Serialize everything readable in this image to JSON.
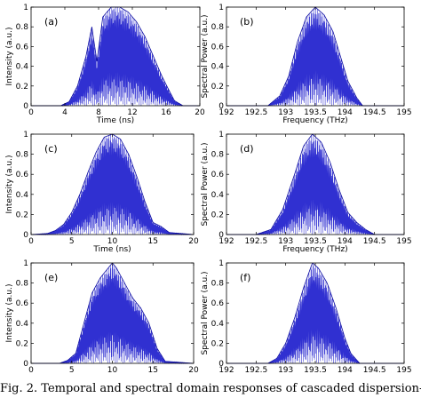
{
  "caption": "Fig. 2. Temporal and spectral domain responses of cascaded dispersion-",
  "chart_data": [
    {
      "type": "line",
      "panel": "(a)",
      "xlabel": "Time (ns)",
      "ylabel": "Intensity (a.u.)",
      "xlim": [
        0,
        20
      ],
      "ylim": [
        0,
        1
      ],
      "xticks": [
        "0",
        "4",
        "8",
        "12",
        "16",
        "20"
      ],
      "yticks": [
        "0",
        "0.2",
        "0.4",
        "0.6",
        "0.8",
        "1"
      ],
      "envelope": {
        "x": [
          0,
          3.5,
          4.5,
          5.5,
          6.5,
          7.2,
          7.8,
          8.5,
          9.5,
          10.5,
          11.5,
          12.5,
          13.5,
          14.5,
          15.5,
          16.5,
          17,
          18,
          20
        ],
        "y": [
          0,
          0,
          0.04,
          0.2,
          0.5,
          0.8,
          0.45,
          0.9,
          1.0,
          1.0,
          0.95,
          0.85,
          0.7,
          0.5,
          0.3,
          0.13,
          0.05,
          0,
          0
        ]
      },
      "line_color": "#1a1acc"
    },
    {
      "type": "line",
      "panel": "(b)",
      "xlabel": "Frequency (THz)",
      "ylabel": "Spectral Power (a.u.)",
      "xlim": [
        192,
        195
      ],
      "ylim": [
        0,
        1
      ],
      "xticks": [
        "192",
        "192.5",
        "193",
        "193.5",
        "194",
        "194.5",
        "195"
      ],
      "yticks": [
        "0",
        "0.2",
        "0.4",
        "0.6",
        "0.8",
        "1"
      ],
      "envelope": {
        "x": [
          192,
          192.7,
          192.9,
          193.05,
          193.2,
          193.35,
          193.5,
          193.65,
          193.8,
          193.95,
          194.05,
          194.2,
          194.3,
          195
        ],
        "y": [
          0,
          0,
          0.1,
          0.3,
          0.65,
          0.9,
          1.0,
          0.92,
          0.75,
          0.45,
          0.25,
          0.08,
          0,
          0
        ]
      },
      "line_color": "#1a1acc"
    },
    {
      "type": "line",
      "panel": "(c)",
      "xlabel": "Time (ns)",
      "ylabel": "Intensity (a.u.)",
      "xlim": [
        0,
        20
      ],
      "ylim": [
        0,
        1
      ],
      "xticks": [
        "0",
        "5",
        "10",
        "15",
        "20"
      ],
      "yticks": [
        "0",
        "0.2",
        "0.4",
        "0.6",
        "0.8",
        "1"
      ],
      "envelope": {
        "x": [
          0,
          2,
          3,
          4,
          5,
          6,
          7,
          8,
          9,
          10,
          11,
          12,
          13,
          14,
          15,
          16,
          17,
          20
        ],
        "y": [
          0,
          0.01,
          0.04,
          0.1,
          0.22,
          0.4,
          0.62,
          0.82,
          0.97,
          1.0,
          0.95,
          0.8,
          0.58,
          0.33,
          0.12,
          0.08,
          0.02,
          0
        ]
      },
      "line_color": "#1a1acc"
    },
    {
      "type": "line",
      "panel": "(d)",
      "xlabel": "Frequency (THz)",
      "ylabel": "Spectral Power (a.u.)",
      "xlim": [
        192,
        195
      ],
      "ylim": [
        0,
        1
      ],
      "xticks": [
        "192",
        "192.5",
        "193",
        "193.5",
        "194",
        "194.5",
        "195"
      ],
      "yticks": [
        "0",
        "0.2",
        "0.4",
        "0.6",
        "0.8",
        "1"
      ],
      "envelope": {
        "x": [
          192,
          192.5,
          192.75,
          192.95,
          193.15,
          193.3,
          193.45,
          193.6,
          193.75,
          193.9,
          194.05,
          194.2,
          194.35,
          194.5,
          195
        ],
        "y": [
          0,
          0,
          0.05,
          0.25,
          0.6,
          0.88,
          1.0,
          0.92,
          0.72,
          0.45,
          0.22,
          0.12,
          0.05,
          0,
          0
        ]
      },
      "line_color": "#1a1acc"
    },
    {
      "type": "line",
      "panel": "(e)",
      "xlabel": "",
      "ylabel": "Intensity (a.u.)",
      "xlim": [
        0,
        20
      ],
      "ylim": [
        0,
        1
      ],
      "xticks": [
        "0",
        "5",
        "10",
        "15",
        "20"
      ],
      "yticks": [
        "0",
        "0.2",
        "0.4",
        "0.6",
        "0.8",
        "1"
      ],
      "envelope": {
        "x": [
          0,
          3.5,
          4.5,
          5.5,
          6.5,
          7.5,
          8.5,
          9.5,
          10,
          10.5,
          11.5,
          12.5,
          13.5,
          14.5,
          15.5,
          16.5,
          20
        ],
        "y": [
          0,
          0,
          0.03,
          0.1,
          0.4,
          0.7,
          0.85,
          0.95,
          1.0,
          0.95,
          0.8,
          0.65,
          0.55,
          0.4,
          0.15,
          0.02,
          0
        ]
      },
      "line_color": "#1a1acc"
    },
    {
      "type": "line",
      "panel": "(f)",
      "xlabel": "",
      "ylabel": "Spectral Power (a.u.)",
      "xlim": [
        192,
        195
      ],
      "ylim": [
        0,
        1
      ],
      "xticks": [
        "192",
        "192.5",
        "193",
        "193.5",
        "194",
        "194.5",
        "195"
      ],
      "yticks": [
        "0",
        "0.2",
        "0.4",
        "0.6",
        "0.8",
        "1"
      ],
      "envelope": {
        "x": [
          192,
          192.7,
          192.85,
          193.0,
          193.15,
          193.3,
          193.45,
          193.55,
          193.7,
          193.85,
          194.0,
          194.1,
          194.25,
          195
        ],
        "y": [
          0,
          0,
          0.05,
          0.2,
          0.45,
          0.75,
          1.0,
          0.95,
          0.8,
          0.55,
          0.25,
          0.1,
          0,
          0
        ]
      },
      "line_color": "#1a1acc"
    }
  ]
}
